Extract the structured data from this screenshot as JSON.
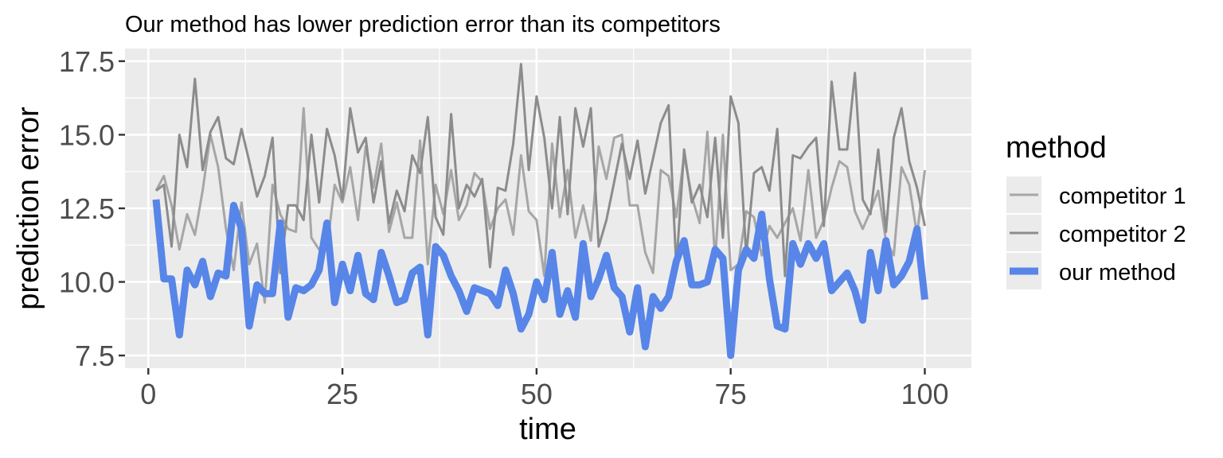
{
  "chart_data": {
    "type": "line",
    "title": "Our method has lower prediction error than its competitors",
    "xlabel": "time",
    "ylabel": "prediction error",
    "xlim": [
      -3,
      106
    ],
    "ylim": [
      7.07,
      17.93
    ],
    "x_ticks": [
      0,
      25,
      50,
      75,
      100
    ],
    "y_ticks": [
      7.5,
      10.0,
      12.5,
      15.0,
      17.5
    ],
    "x_tick_labels": [
      "0",
      "25",
      "50",
      "75",
      "100"
    ],
    "y_tick_labels": [
      "7.5",
      "10.0",
      "12.5",
      "15.0",
      "17.5"
    ],
    "grid": true,
    "legend": {
      "title": "method",
      "position": "right"
    },
    "x_start": 1,
    "series": [
      {
        "name": "competitor 1",
        "color": "#a6a6a6",
        "width": 3,
        "values": [
          13.1,
          13.6,
          12.6,
          11.1,
          12.3,
          11.6,
          13.1,
          15.0,
          13.9,
          11.8,
          10.4,
          12.7,
          10.6,
          11.3,
          9.3,
          13.3,
          12.3,
          11.8,
          11.7,
          15.9,
          11.5,
          11.1,
          11.1,
          13.3,
          12.7,
          13.9,
          12.1,
          14.6,
          13.2,
          14.7,
          11.7,
          12.7,
          11.5,
          11.5,
          14.8,
          10.6,
          13.3,
          12.3,
          13.8,
          12.1,
          12.6,
          13.7,
          13.4,
          11.8,
          12.5,
          12.8,
          11.6,
          14.3,
          12.4,
          12.1,
          10.2,
          14.7,
          12.2,
          13.8,
          11.5,
          12.6,
          11.4,
          14.6,
          13.5,
          14.9,
          15.0,
          12.6,
          12.6,
          11.0,
          10.3,
          13.8,
          13.6,
          12.2,
          14.3,
          12.9,
          12.0,
          15.1,
          10.7,
          15.0,
          10.4,
          10.6,
          12.4,
          12.2,
          10.9,
          11.9,
          11.5,
          12.0,
          12.5,
          11.4,
          13.8,
          11.5,
          12.1,
          13.2,
          14.1,
          13.9,
          12.4,
          11.8,
          12.4,
          13.1,
          11.4,
          10.9,
          13.9,
          13.3,
          11.6,
          13.8
        ]
      },
      {
        "name": "competitor 2",
        "color": "#8c8c8c",
        "width": 3,
        "values": [
          13.1,
          13.3,
          11.2,
          15.0,
          13.9,
          16.9,
          13.8,
          15.1,
          15.6,
          14.2,
          14.0,
          15.2,
          14.1,
          12.9,
          13.6,
          14.9,
          10.3,
          12.6,
          12.6,
          12.1,
          15.0,
          12.7,
          15.2,
          14.3,
          12.8,
          15.9,
          14.4,
          14.9,
          12.7,
          14.1,
          12.0,
          13.1,
          12.4,
          14.3,
          13.7,
          15.6,
          12.2,
          11.6,
          15.7,
          12.5,
          13.3,
          12.9,
          13.5,
          10.5,
          13.2,
          13.1,
          14.7,
          17.4,
          13.8,
          16.3,
          14.9,
          12.5,
          15.6,
          12.3,
          15.9,
          14.6,
          15.9,
          11.2,
          12.1,
          13.4,
          14.7,
          13.5,
          14.8,
          13.0,
          14.2,
          15.4,
          16.0,
          10.5,
          14.5,
          12.7,
          13.3,
          12.2,
          14.9,
          11.5,
          16.3,
          15.4,
          10.9,
          13.7,
          13.9,
          13.1,
          15.2,
          10.2,
          14.3,
          14.2,
          14.6,
          14.9,
          11.9,
          16.8,
          14.5,
          14.5,
          17.1,
          12.8,
          12.3,
          14.5,
          11.7,
          14.9,
          15.9,
          14.1,
          13.2,
          11.9
        ]
      },
      {
        "name": "our method",
        "color": "#5785e8",
        "width": 9,
        "values": [
          12.8,
          10.1,
          10.1,
          8.2,
          10.4,
          9.9,
          10.7,
          9.5,
          10.3,
          10.2,
          12.6,
          11.8,
          8.5,
          9.9,
          9.6,
          9.6,
          12.0,
          8.8,
          9.8,
          9.7,
          9.9,
          10.4,
          12.0,
          9.3,
          10.6,
          9.7,
          10.9,
          9.6,
          9.4,
          11.0,
          10.2,
          9.3,
          9.4,
          10.3,
          10.5,
          8.2,
          11.2,
          10.9,
          10.2,
          9.7,
          9.0,
          9.8,
          9.7,
          9.6,
          9.2,
          10.4,
          9.6,
          8.4,
          8.9,
          10.0,
          9.4,
          11.0,
          8.9,
          9.7,
          8.8,
          11.3,
          9.5,
          10.1,
          10.9,
          9.8,
          9.5,
          8.3,
          9.8,
          7.8,
          9.5,
          9.1,
          9.5,
          10.7,
          11.4,
          9.9,
          9.9,
          10.0,
          11.1,
          10.8,
          7.5,
          10.4,
          11.1,
          10.8,
          12.3,
          10.1,
          8.5,
          8.4,
          11.3,
          10.6,
          11.3,
          10.8,
          11.3,
          9.7,
          10.0,
          10.3,
          9.7,
          8.7,
          11.0,
          9.7,
          11.4,
          9.9,
          10.2,
          10.7,
          11.8,
          9.4
        ]
      }
    ]
  }
}
